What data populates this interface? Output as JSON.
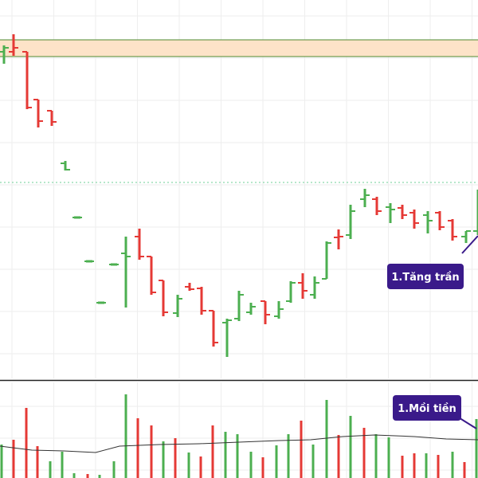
{
  "colors": {
    "up": "#4caf50",
    "down": "#e53935",
    "grid": "#eeeeee",
    "zone_fill": "#fde3c8",
    "zone_border": "#4e8a2f",
    "ref_line": "#6fcf97",
    "ma_line": "#333333",
    "callout_bg": "#3a1a8a",
    "pane_divider": "#222222"
  },
  "annotations": {
    "price_callout": "1.Tăng trần",
    "volume_callout": "1.Mồi tiền"
  },
  "chart_data": [
    {
      "type": "ohlc",
      "pane": "price",
      "title": "",
      "xlabel": "",
      "ylabel": "",
      "ylim": [
        0,
        475
      ],
      "grid": true,
      "zone": {
        "from": 404,
        "to": 425
      },
      "reference_level": 246,
      "bars": [
        {
          "x": 5,
          "open": 410,
          "high": 418,
          "low": 395,
          "close": 415,
          "dir": "up"
        },
        {
          "x": 17,
          "open": 410,
          "high": 432,
          "low": 405,
          "close": 415,
          "dir": "down"
        },
        {
          "x": 34,
          "open": 410,
          "high": 410,
          "low": 338,
          "close": 340,
          "dir": "down"
        },
        {
          "x": 48,
          "open": 350,
          "high": 350,
          "low": 315,
          "close": 323,
          "dir": "down"
        },
        {
          "x": 65,
          "open": 336,
          "high": 336,
          "low": 317,
          "close": 322,
          "dir": "down"
        },
        {
          "x": 82,
          "open": 270,
          "high": 273,
          "low": 261,
          "close": 262,
          "dir": "up"
        },
        {
          "x": 97,
          "open": 202,
          "high": 202,
          "low": 202,
          "close": 202,
          "dir": "up"
        },
        {
          "x": 112,
          "open": 147,
          "high": 147,
          "low": 147,
          "close": 147,
          "dir": "up"
        },
        {
          "x": 127,
          "open": 95,
          "high": 95,
          "low": 95,
          "close": 95,
          "dir": "up"
        },
        {
          "x": 143,
          "open": 143,
          "high": 143,
          "low": 143,
          "close": 143,
          "dir": "up"
        },
        {
          "x": 158,
          "open": 157,
          "high": 178,
          "low": 89,
          "close": 153,
          "dir": "up"
        },
        {
          "x": 175,
          "open": 178,
          "high": 188,
          "low": 149,
          "close": 153,
          "dir": "down"
        },
        {
          "x": 190,
          "open": 153,
          "high": 153,
          "low": 105,
          "close": 108,
          "dir": "down"
        },
        {
          "x": 205,
          "open": 123,
          "high": 123,
          "low": 78,
          "close": 83,
          "dir": "down"
        },
        {
          "x": 223,
          "open": 82,
          "high": 105,
          "low": 77,
          "close": 100,
          "dir": "up"
        },
        {
          "x": 238,
          "open": 115,
          "high": 120,
          "low": 110,
          "close": 112,
          "dir": "down"
        },
        {
          "x": 253,
          "open": 113,
          "high": 115,
          "low": 80,
          "close": 85,
          "dir": "down"
        },
        {
          "x": 268,
          "open": 85,
          "high": 85,
          "low": 40,
          "close": 45,
          "dir": "down"
        },
        {
          "x": 285,
          "open": 70,
          "high": 75,
          "low": 27,
          "close": 73,
          "dir": "up"
        },
        {
          "x": 300,
          "open": 75,
          "high": 110,
          "low": 72,
          "close": 105,
          "dir": "up"
        },
        {
          "x": 315,
          "open": 83,
          "high": 95,
          "low": 80,
          "close": 90,
          "dir": "up"
        },
        {
          "x": 333,
          "open": 97,
          "high": 97,
          "low": 68,
          "close": 80,
          "dir": "down"
        },
        {
          "x": 350,
          "open": 78,
          "high": 97,
          "low": 75,
          "close": 87,
          "dir": "up"
        },
        {
          "x": 365,
          "open": 97,
          "high": 122,
          "low": 95,
          "close": 120,
          "dir": "up"
        },
        {
          "x": 380,
          "open": 120,
          "high": 132,
          "low": 100,
          "close": 110,
          "dir": "down"
        },
        {
          "x": 395,
          "open": 105,
          "high": 128,
          "low": 100,
          "close": 120,
          "dir": "up"
        },
        {
          "x": 410,
          "open": 125,
          "high": 172,
          "low": 125,
          "close": 170,
          "dir": "up"
        },
        {
          "x": 425,
          "open": 177,
          "high": 187,
          "low": 162,
          "close": 178,
          "dir": "down"
        },
        {
          "x": 440,
          "open": 180,
          "high": 218,
          "low": 175,
          "close": 210,
          "dir": "up"
        },
        {
          "x": 458,
          "open": 225,
          "high": 238,
          "low": 215,
          "close": 230,
          "dir": "up"
        },
        {
          "x": 473,
          "open": 225,
          "high": 228,
          "low": 205,
          "close": 210,
          "dir": "down"
        },
        {
          "x": 490,
          "open": 215,
          "high": 220,
          "low": 195,
          "close": 212,
          "dir": "up"
        },
        {
          "x": 505,
          "open": 214,
          "high": 218,
          "low": 200,
          "close": 205,
          "dir": "down"
        },
        {
          "x": 520,
          "open": 208,
          "high": 212,
          "low": 188,
          "close": 195,
          "dir": "down"
        },
        {
          "x": 537,
          "open": 205,
          "high": 210,
          "low": 182,
          "close": 198,
          "dir": "up"
        },
        {
          "x": 552,
          "open": 208,
          "high": 210,
          "low": 186,
          "close": 190,
          "dir": "down"
        },
        {
          "x": 568,
          "open": 198,
          "high": 200,
          "low": 173,
          "close": 178,
          "dir": "down"
        },
        {
          "x": 585,
          "open": 178,
          "high": 185,
          "low": 170,
          "close": 185,
          "dir": "up"
        },
        {
          "x": 600,
          "open": 185,
          "high": 237,
          "low": 180,
          "close": 235,
          "dir": "up"
        }
      ]
    },
    {
      "type": "bar",
      "pane": "volume",
      "title": "",
      "xlabel": "",
      "ylabel": "",
      "ylim": [
        0,
        120
      ],
      "grid": true,
      "bars": [
        {
          "x": 2,
          "value": 42,
          "dir": "up"
        },
        {
          "x": 17,
          "value": 48,
          "dir": "down"
        },
        {
          "x": 33,
          "value": 88,
          "dir": "down"
        },
        {
          "x": 47,
          "value": 40,
          "dir": "down"
        },
        {
          "x": 63,
          "value": 21,
          "dir": "up"
        },
        {
          "x": 78,
          "value": 33,
          "dir": "up"
        },
        {
          "x": 93,
          "value": 6,
          "dir": "up"
        },
        {
          "x": 110,
          "value": 5,
          "dir": "down"
        },
        {
          "x": 125,
          "value": 4,
          "dir": "up"
        },
        {
          "x": 143,
          "value": 21,
          "dir": "up"
        },
        {
          "x": 158,
          "value": 105,
          "dir": "up"
        },
        {
          "x": 173,
          "value": 75,
          "dir": "down"
        },
        {
          "x": 190,
          "value": 66,
          "dir": "down"
        },
        {
          "x": 205,
          "value": 46,
          "dir": "up"
        },
        {
          "x": 220,
          "value": 50,
          "dir": "down"
        },
        {
          "x": 237,
          "value": 32,
          "dir": "up"
        },
        {
          "x": 252,
          "value": 27,
          "dir": "down"
        },
        {
          "x": 267,
          "value": 66,
          "dir": "down"
        },
        {
          "x": 283,
          "value": 58,
          "dir": "up"
        },
        {
          "x": 298,
          "value": 55,
          "dir": "up"
        },
        {
          "x": 315,
          "value": 33,
          "dir": "up"
        },
        {
          "x": 330,
          "value": 26,
          "dir": "down"
        },
        {
          "x": 347,
          "value": 41,
          "dir": "up"
        },
        {
          "x": 362,
          "value": 55,
          "dir": "up"
        },
        {
          "x": 378,
          "value": 72,
          "dir": "down"
        },
        {
          "x": 393,
          "value": 42,
          "dir": "up"
        },
        {
          "x": 410,
          "value": 98,
          "dir": "up"
        },
        {
          "x": 425,
          "value": 54,
          "dir": "down"
        },
        {
          "x": 440,
          "value": 78,
          "dir": "up"
        },
        {
          "x": 457,
          "value": 63,
          "dir": "down"
        },
        {
          "x": 472,
          "value": 55,
          "dir": "up"
        },
        {
          "x": 488,
          "value": 51,
          "dir": "up"
        },
        {
          "x": 505,
          "value": 28,
          "dir": "down"
        },
        {
          "x": 520,
          "value": 31,
          "dir": "down"
        },
        {
          "x": 535,
          "value": 31,
          "dir": "up"
        },
        {
          "x": 550,
          "value": 29,
          "dir": "down"
        },
        {
          "x": 568,
          "value": 33,
          "dir": "up"
        },
        {
          "x": 583,
          "value": 20,
          "dir": "down"
        },
        {
          "x": 598,
          "value": 74,
          "dir": "up"
        }
      ],
      "moving_average": [
        [
          0,
          40
        ],
        [
          40,
          35
        ],
        [
          80,
          34
        ],
        [
          120,
          32
        ],
        [
          150,
          40
        ],
        [
          200,
          42
        ],
        [
          250,
          43
        ],
        [
          300,
          45
        ],
        [
          350,
          47
        ],
        [
          390,
          48
        ],
        [
          430,
          52
        ],
        [
          470,
          54
        ],
        [
          520,
          52
        ],
        [
          560,
          49
        ],
        [
          600,
          48
        ]
      ]
    }
  ]
}
